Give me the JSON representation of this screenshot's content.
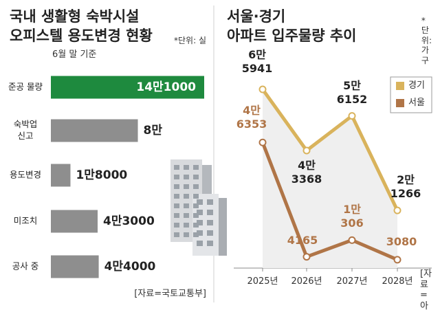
{
  "chart_data": [
    {
      "type": "bar",
      "title": "국내 생활형 숙박시설\n오피스텔 용도변경 현황",
      "unit_note": "*단위: 실",
      "subtitle": "6월 말 기준",
      "source": "[자료=국토교통부]",
      "categories": [
        "준공 물량",
        "숙박업\n신고",
        "용도변경",
        "미조치",
        "공사 중"
      ],
      "values": [
        141000,
        80000,
        18000,
        43000,
        44000
      ],
      "value_labels": [
        "14만1000",
        "8만",
        "1만8000",
        "4만3000",
        "4만4000"
      ],
      "colors": [
        "#1e8a3e",
        "#8e8e8e",
        "#8e8e8e",
        "#8e8e8e",
        "#8e8e8e"
      ]
    },
    {
      "type": "line",
      "title": "서울·경기\n아파트 입주물량 추이",
      "unit_note": "*단위: 가구",
      "source": "[자료=아실]",
      "x": [
        "2025년",
        "2026년",
        "2027년",
        "2028년"
      ],
      "legend": "upper right",
      "series": [
        {
          "name": "경기",
          "color": "#d9b35c",
          "values": [
            65941,
            43368,
            56152,
            21266
          ],
          "value_labels": [
            "6만\n5941",
            "4만\n3368",
            "5만\n6152",
            "2만\n1266"
          ]
        },
        {
          "name": "서울",
          "color": "#b07547",
          "values": [
            46353,
            4165,
            10306,
            3080
          ],
          "value_labels": [
            "4만\n6353",
            "4165",
            "1만\n306",
            "3080"
          ]
        }
      ]
    }
  ]
}
